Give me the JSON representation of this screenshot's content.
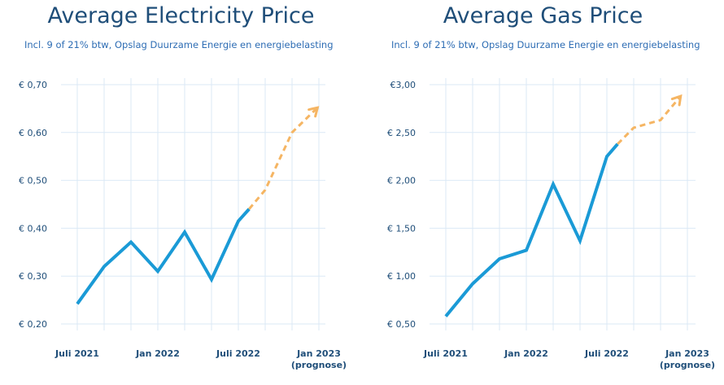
{
  "charts": [
    {
      "title": "Average Electricity Price",
      "subtitle": "Incl. 9 of 21% btw, Opslag Duurzame Energie en energiebelasting"
    },
    {
      "title": "Average Gas Price",
      "subtitle": "Incl. 9 of 21% btw, Opslag Duurzame Energie en energiebelasting"
    }
  ],
  "chart_data": [
    {
      "type": "line",
      "title": "Average Electricity Price",
      "subtitle": "Incl. 9 of 21% btw, Opslag Duurzame Energie en energiebelasting",
      "ylim": [
        0.2,
        0.7
      ],
      "yticks": [
        0.2,
        0.3,
        0.4,
        0.5,
        0.6,
        0.7
      ],
      "ytick_labels": [
        "€ 0,20",
        "€ 0,30",
        "€ 0,40",
        "€ 0,50",
        "€ 0,60",
        "€ 0,70"
      ],
      "xlim": [
        0,
        18
      ],
      "xtick_positions": [
        0,
        6,
        12,
        18
      ],
      "xtick_labels": [
        "Juli 2021",
        "Jan 2022",
        "Juli 2022",
        "Jan 2023"
      ],
      "xtick_sublabels": [
        "",
        "",
        "",
        "(prognose)"
      ],
      "grid": true,
      "series": [
        {
          "style": "actual",
          "color": "#1a9ad6",
          "x": [
            0,
            2,
            4,
            6,
            8,
            10,
            12,
            12.8
          ],
          "y": [
            0.242,
            0.32,
            0.371,
            0.31,
            0.392,
            0.293,
            0.415,
            0.44
          ]
        },
        {
          "style": "forecast",
          "color": "#f5b563",
          "x": [
            12.8,
            14,
            16,
            17.9
          ],
          "y": [
            0.44,
            0.48,
            0.6,
            0.652
          ]
        }
      ]
    },
    {
      "type": "line",
      "title": "Average Gas Price",
      "subtitle": "Incl. 9 of 21% btw, Opslag Duurzame Energie en energiebelasting",
      "ylim": [
        0.5,
        3.0
      ],
      "yticks": [
        0.5,
        1.0,
        1.5,
        2.0,
        2.5,
        3.0
      ],
      "ytick_labels": [
        "€ 0,50",
        "€ 1,00",
        "€ 1,50",
        "€ 2,00",
        "€ 2,50",
        "€3,00"
      ],
      "xlim": [
        0,
        18
      ],
      "xtick_positions": [
        0,
        6,
        12,
        18
      ],
      "xtick_labels": [
        "Juli 2021",
        "Jan 2022",
        "Juli 2022",
        "Jan 2023"
      ],
      "xtick_sublabels": [
        "",
        "",
        "",
        "(prognose)"
      ],
      "grid": true,
      "series": [
        {
          "style": "actual",
          "color": "#1a9ad6",
          "x": [
            0,
            2,
            4,
            6,
            8,
            10,
            12,
            12.8
          ],
          "y": [
            0.58,
            0.92,
            1.18,
            1.27,
            1.96,
            1.37,
            2.25,
            2.38
          ]
        },
        {
          "style": "forecast",
          "color": "#f5b563",
          "x": [
            12.8,
            14,
            16,
            17.5
          ],
          "y": [
            2.38,
            2.55,
            2.63,
            2.88
          ]
        }
      ]
    }
  ]
}
